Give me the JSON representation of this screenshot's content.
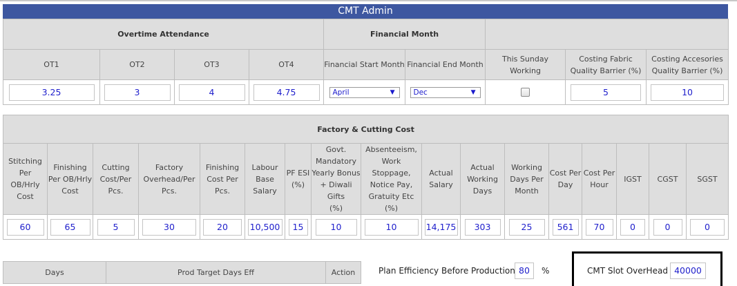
{
  "title": "CMT Admin",
  "overtime": {
    "group_label": "Overtime Attendance",
    "headers": [
      "OT1",
      "OT2",
      "OT3",
      "OT4"
    ],
    "values": [
      "3.25",
      "3",
      "4",
      "4.75"
    ]
  },
  "financial": {
    "group_label": "Financial Month",
    "start_label": "Financial Start Month",
    "end_label": "Financial End Month",
    "start_value": "April",
    "end_value": "Dec"
  },
  "sunday": {
    "label": "This Sunday Working",
    "checked": false
  },
  "fabric_barrier": {
    "label1": "Costing Fabric",
    "label2": "Quality Barrier (%)",
    "value": "5"
  },
  "accessories_barrier": {
    "label1": "Costing Accesories",
    "label2": "Quality Barrier (%)",
    "value": "10"
  },
  "factory": {
    "group_label": "Factory & Cutting Cost",
    "columns": [
      {
        "lines": [
          "Stitching",
          "Per OB/Hrly",
          "Cost"
        ],
        "value": "60"
      },
      {
        "lines": [
          "Finishing",
          "Per OB/Hrly",
          "Cost"
        ],
        "value": "65"
      },
      {
        "lines": [
          "Cutting",
          "Cost/Per",
          "Pcs."
        ],
        "value": "5"
      },
      {
        "lines": [
          "Factory",
          "Overhead/Per",
          "Pcs."
        ],
        "value": "30"
      },
      {
        "lines": [
          "Finishing",
          "Cost Per",
          "Pcs."
        ],
        "value": "20"
      },
      {
        "lines": [
          "Labour",
          "Base",
          "Salary"
        ],
        "value": "10,500"
      },
      {
        "lines": [
          "PF ESI",
          "(%)"
        ],
        "value": "15"
      },
      {
        "lines": [
          "Govt.",
          "Mandatory",
          "Yearly Bonus",
          "+ Diwali Gifts",
          "(%)"
        ],
        "value": "10"
      },
      {
        "lines": [
          "Absenteeism,",
          "Work Stoppage,",
          "Notice Pay,",
          "Gratuity Etc (%)"
        ],
        "value": "10"
      },
      {
        "lines": [
          "Actual",
          "Salary"
        ],
        "value": "14,175"
      },
      {
        "lines": [
          "Actual",
          "Working",
          "Days"
        ],
        "value": "303"
      },
      {
        "lines": [
          "Working",
          "Days Per",
          "Month"
        ],
        "value": "25"
      },
      {
        "lines": [
          "Cost Per",
          "Day"
        ],
        "value": "561"
      },
      {
        "lines": [
          "Cost Per",
          "Hour"
        ],
        "value": "70"
      },
      {
        "lines": [
          "IGST"
        ],
        "value": "0"
      },
      {
        "lines": [
          "CGST"
        ],
        "value": "0"
      },
      {
        "lines": [
          "SGST"
        ],
        "value": "0"
      }
    ]
  },
  "days_table": {
    "days": "Days",
    "prod_target": "Prod Target Days Eff",
    "action": "Action"
  },
  "plan_efficiency": {
    "label": "Plan Efficiency Before Production",
    "value": "80",
    "unit": "%"
  },
  "cmt_slot": {
    "label": "CMT Slot OverHead",
    "value": "40000"
  }
}
